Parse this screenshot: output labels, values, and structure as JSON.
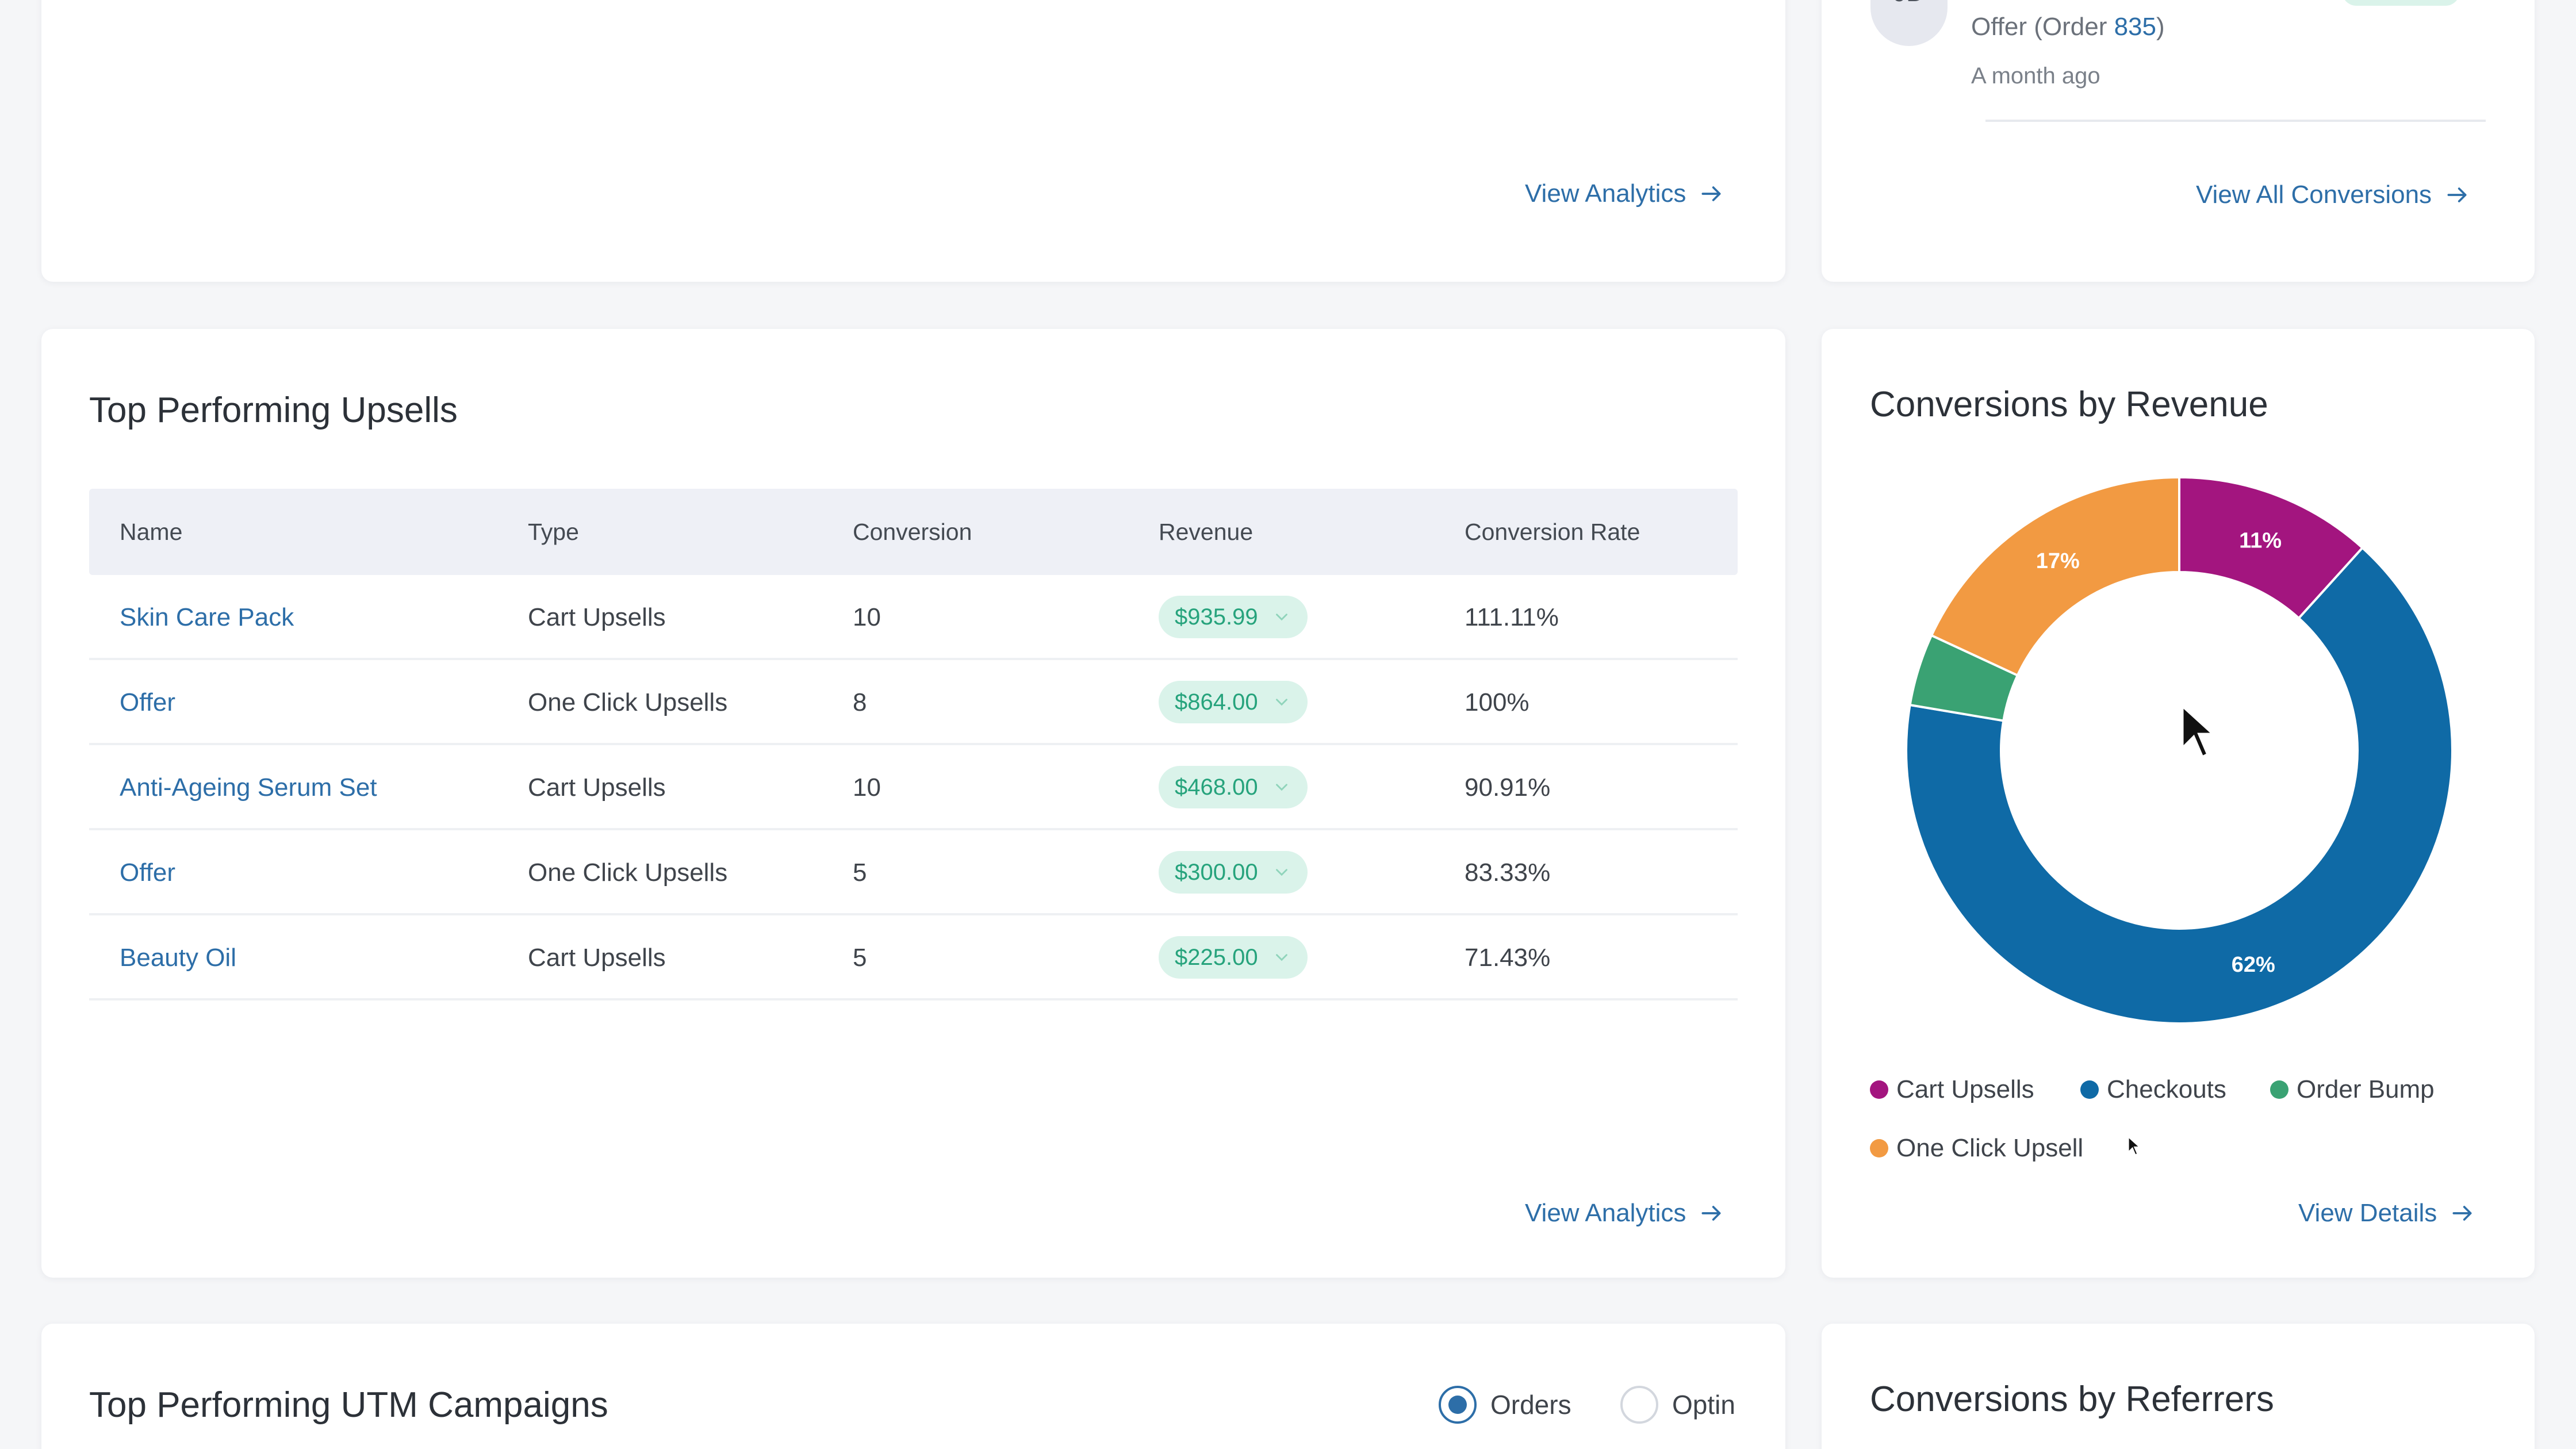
{
  "top_left_card": {
    "view_analytics_label": "View Analytics"
  },
  "recent_conversion": {
    "avatar_initials": "JD",
    "offer_prefix": "Offer (Order ",
    "order_number": "835",
    "offer_suffix": ")",
    "time": "A month ago",
    "view_all_label": "View All Conversions"
  },
  "upsells": {
    "title": "Top Performing Upsells",
    "columns": [
      "Name",
      "Type",
      "Conversion",
      "Revenue",
      "Conversion Rate"
    ],
    "rows": [
      {
        "name": "Skin Care Pack",
        "type": "Cart Upsells",
        "conversion": "10",
        "revenue": "$935.99",
        "rate": "111.11%"
      },
      {
        "name": "Offer",
        "type": "One Click Upsells",
        "conversion": "8",
        "revenue": "$864.00",
        "rate": "100%"
      },
      {
        "name": "Anti-Ageing Serum Set",
        "type": "Cart Upsells",
        "conversion": "10",
        "revenue": "$468.00",
        "rate": "90.91%"
      },
      {
        "name": "Offer",
        "type": "One Click Upsells",
        "conversion": "5",
        "revenue": "$300.00",
        "rate": "83.33%"
      },
      {
        "name": "Beauty Oil",
        "type": "Cart Upsells",
        "conversion": "5",
        "revenue": "$225.00",
        "rate": "71.43%"
      }
    ],
    "view_analytics_label": "View Analytics"
  },
  "revenue_chart": {
    "title": "Conversions by Revenue",
    "view_details_label": "View Details",
    "legend": [
      {
        "label": "Cart Upsells",
        "color": "#a3157f"
      },
      {
        "label": "Checkouts",
        "color": "#0f6aa6"
      },
      {
        "label": "Order Bump",
        "color": "#3aa273"
      },
      {
        "label": "One Click Upsell",
        "color": "#f29a42"
      }
    ]
  },
  "chart_data": {
    "type": "pie",
    "title": "Conversions by Revenue",
    "categories": [
      "Cart Upsells",
      "Checkouts",
      "Order Bump",
      "One Click Upsell"
    ],
    "values": [
      11,
      62,
      4,
      17
    ],
    "labels": [
      "11%",
      "62%",
      "",
      "17%"
    ],
    "colors": [
      "#a3157f",
      "#0f6aa6",
      "#3aa273",
      "#f29a42"
    ],
    "legend_position": "bottom"
  },
  "utm": {
    "title": "Top Performing UTM Campaigns",
    "radio_orders": "Orders",
    "radio_optin": "Optin"
  },
  "referrers": {
    "title": "Conversions by Referrers"
  }
}
